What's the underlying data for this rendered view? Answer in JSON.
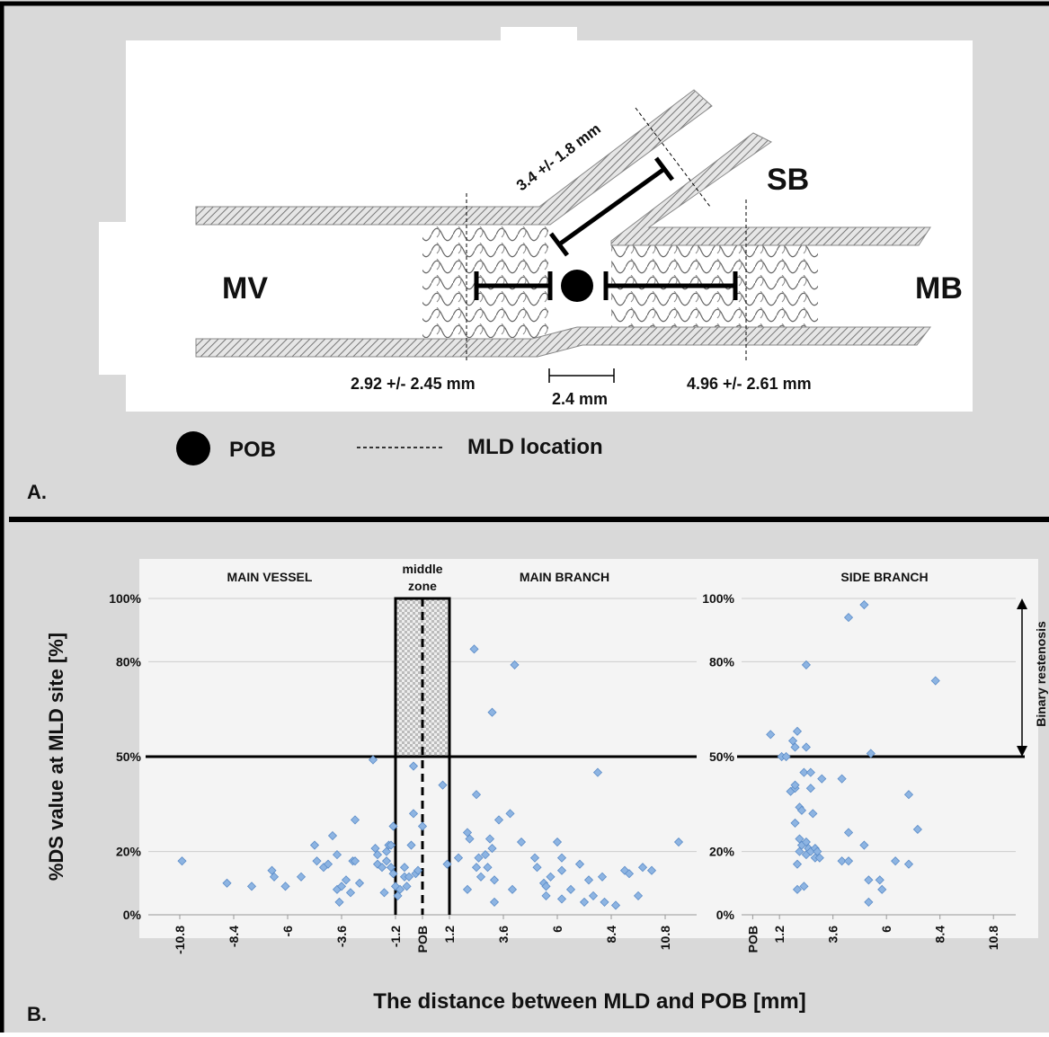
{
  "diagram": {
    "panel_label": "A.",
    "mv": "MV",
    "mb": "MB",
    "sb": "SB",
    "sb_distance": "3.4 +/- 1.8 mm",
    "mv_distance": "2.92 +/- 2.45 mm",
    "scale": "2.4 mm",
    "mb_distance": "4.96 +/- 2.61 mm",
    "legend_pob": "POB",
    "legend_mld": "MLD location"
  },
  "panel_b": {
    "panel_label": "B.",
    "y_label": "%DS value at MLD site [%]",
    "x_label": "The distance between MLD and POB [mm]",
    "annotation": "Binary restenosis"
  },
  "chart_data": [
    {
      "type": "scatter",
      "section_labels": [
        "MAIN VESSEL",
        "MAIN BRANCH"
      ],
      "zone_label": [
        "middle",
        "zone"
      ],
      "zone": [
        -1.2,
        1.2
      ],
      "reference_line": 50,
      "color": "#8db4e2",
      "xlim": [
        -12.2,
        12.2
      ],
      "ylim": [
        0,
        100
      ],
      "xticks": [
        -10.8,
        -8.4,
        -6,
        -3.6,
        -1.2,
        {
          "value": 0,
          "label": "POB"
        },
        1.2,
        3.6,
        6,
        8.4,
        10.8
      ],
      "yticks": [
        {
          "value": 0,
          "label": "0%"
        },
        {
          "value": 20,
          "label": "20%"
        },
        {
          "value": 50,
          "label": "50%"
        },
        {
          "value": 80,
          "label": "80%"
        },
        {
          "value": 100,
          "label": "100%"
        }
      ],
      "x": [
        -10.7,
        -8.7,
        -7.6,
        -6.7,
        -6.6,
        -6.1,
        -5.4,
        -4.8,
        -4.7,
        -4.4,
        -4.2,
        -4.0,
        -3.8,
        -3.8,
        -3.7,
        -3.6,
        -3.4,
        -3.2,
        -3.1,
        -3.0,
        -3.0,
        -2.8,
        -2.2,
        -2.1,
        -2.0,
        -2.0,
        -1.8,
        -1.7,
        -1.6,
        -1.6,
        -1.5,
        -1.4,
        -1.4,
        -1.3,
        -1.3,
        -1.2,
        -1.1,
        -1.0,
        -0.8,
        -0.8,
        -0.7,
        -0.6,
        -0.5,
        -0.4,
        -0.4,
        -0.3,
        -0.2,
        0,
        0.9,
        1.1,
        1.6,
        2.0,
        2.0,
        2.1,
        2.3,
        2.4,
        2.4,
        2.5,
        2.6,
        2.8,
        2.9,
        3.0,
        3.1,
        3.1,
        3.2,
        3.2,
        3.4,
        3.9,
        4.0,
        4.1,
        4.4,
        5.0,
        5.1,
        5.4,
        5.5,
        5.5,
        5.7,
        6.0,
        6.2,
        6.2,
        6.2,
        6.6,
        7.0,
        7.2,
        7.4,
        7.6,
        7.8,
        8.0,
        8.1,
        8.6,
        9.0,
        9.2,
        9.6,
        9.8,
        10.2,
        11.4
      ],
      "values": [
        17,
        10,
        9,
        14,
        12,
        9,
        12,
        22,
        17,
        15,
        16,
        25,
        19,
        8,
        4,
        9,
        11,
        7,
        17,
        17,
        30,
        10,
        49,
        21,
        19,
        16,
        15,
        7,
        20,
        17,
        22,
        22,
        15,
        28,
        13,
        9,
        6,
        8,
        12,
        15,
        9,
        12,
        22,
        47,
        32,
        13,
        14,
        28,
        41,
        16,
        18,
        8,
        26,
        24,
        84,
        15,
        38,
        18,
        12,
        19,
        15,
        24,
        21,
        64,
        11,
        4,
        30,
        32,
        8,
        79,
        23,
        18,
        15,
        10,
        9,
        6,
        12,
        23,
        14,
        18,
        5,
        8,
        16,
        4,
        11,
        6,
        45,
        12,
        4,
        3,
        14,
        13,
        6,
        15,
        14,
        23
      ]
    },
    {
      "type": "scatter",
      "section_labels": [
        "SIDE BRANCH"
      ],
      "reference_line": 50,
      "color": "#8db4e2",
      "xlim": [
        -0.5,
        11.8
      ],
      "ylim": [
        0,
        100
      ],
      "xticks": [
        {
          "value": 0,
          "label": "POB"
        },
        1.2,
        3.6,
        6,
        8.4,
        10.8
      ],
      "yticks": [
        {
          "value": 0,
          "label": "0%"
        },
        {
          "value": 20,
          "label": "20%"
        },
        {
          "value": 50,
          "label": "50%"
        },
        {
          "value": 80,
          "label": "80%"
        },
        {
          "value": 100,
          "label": "100%"
        }
      ],
      "x": [
        0.8,
        1.3,
        1.5,
        1.7,
        1.8,
        1.9,
        1.9,
        1.9,
        1.9,
        2.0,
        2.0,
        2.0,
        2.1,
        2.1,
        2.1,
        2.2,
        2.2,
        2.3,
        2.3,
        2.4,
        2.4,
        2.4,
        2.4,
        2.5,
        2.6,
        2.6,
        2.6,
        2.7,
        2.8,
        2.8,
        2.9,
        3.0,
        3.1,
        4.0,
        4.0,
        4.3,
        4.3,
        4.3,
        5.0,
        5.0,
        5.2,
        5.3,
        5.2,
        5.7,
        5.8,
        6.4,
        7.0,
        7.0,
        7.4,
        8.2
      ],
      "values": [
        57,
        50,
        50,
        39,
        55,
        40,
        41,
        29,
        53,
        58,
        16,
        8,
        24,
        34,
        20,
        22,
        33,
        45,
        9,
        79,
        19,
        53,
        23,
        21,
        20,
        40,
        45,
        32,
        18,
        21,
        20,
        18,
        43,
        43,
        17,
        17,
        26,
        94,
        98,
        22,
        11,
        51,
        4,
        11,
        8,
        17,
        16,
        38,
        27,
        74
      ]
    }
  ]
}
